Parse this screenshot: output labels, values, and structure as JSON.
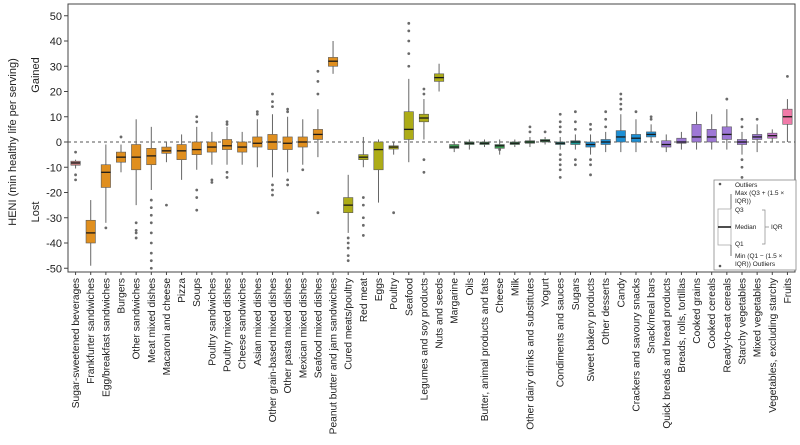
{
  "chart_data": {
    "type": "boxplot",
    "ylabel": "HENI (min healthy life per serving)",
    "y_region_labels": {
      "top": "Gained",
      "bottom": "Lost"
    },
    "ylim": [
      -53,
      55
    ],
    "yticks": [
      -50,
      -40,
      -30,
      -20,
      -10,
      0,
      10,
      20,
      30,
      40,
      50
    ],
    "reference_line": 0,
    "grid": false,
    "categories": [
      {
        "name": "Sugar-sweetened beverages",
        "color": "#c98585",
        "q1": -9.2,
        "median": -8.3,
        "q3": -7.6,
        "wl": -10.5,
        "wh": -7,
        "outliers": [
          -13,
          -15,
          -4
        ]
      },
      {
        "name": "Frankfurter sandwiches",
        "color": "#e08f1f",
        "q1": -40,
        "median": -36,
        "q3": -31,
        "wl": -49,
        "wh": -23,
        "outliers": []
      },
      {
        "name": "Egg/breakfast sandwiches",
        "color": "#e08f1f",
        "q1": -18,
        "median": -12,
        "q3": -9,
        "wl": -32,
        "wh": -1,
        "outliers": [
          -34
        ]
      },
      {
        "name": "Burgers",
        "color": "#e08f1f",
        "q1": -8,
        "median": -6,
        "q3": -4,
        "wl": -12,
        "wh": -1,
        "outliers": [
          2
        ]
      },
      {
        "name": "Other sandwiches",
        "color": "#e08f1f",
        "q1": -11,
        "median": -6,
        "q3": -1,
        "wl": -25,
        "wh": 9,
        "outliers": [
          -32,
          -35,
          -36,
          -38
        ]
      },
      {
        "name": "Meat mixed dishes",
        "color": "#e08f1f",
        "q1": -9,
        "median": -5.5,
        "q3": -2.5,
        "wl": -19,
        "wh": 6,
        "outliers": [
          -23,
          -26,
          -29,
          -32,
          -36,
          -40,
          -44,
          -47,
          -50
        ]
      },
      {
        "name": "Macaroni and cheese",
        "color": "#e08f1f",
        "q1": -4.5,
        "median": -3.5,
        "q3": -2,
        "wl": -8,
        "wh": 0,
        "outliers": [
          -25
        ]
      },
      {
        "name": "Pizza",
        "color": "#e08f1f",
        "q1": -7,
        "median": -3.5,
        "q3": -1,
        "wl": -15,
        "wh": 3,
        "outliers": []
      },
      {
        "name": "Soups",
        "color": "#e08f1f",
        "q1": -5,
        "median": -3,
        "q3": 0,
        "wl": -11,
        "wh": 6,
        "outliers": [
          -19,
          -22,
          -27,
          8,
          10
        ]
      },
      {
        "name": "Poultry sandwiches",
        "color": "#e08f1f",
        "q1": -4,
        "median": -2,
        "q3": 0,
        "wl": -9,
        "wh": 4,
        "outliers": [
          -15,
          -16
        ]
      },
      {
        "name": "Poultry mixed dishes",
        "color": "#e08f1f",
        "q1": -3,
        "median": -1.5,
        "q3": 1,
        "wl": -9,
        "wh": 6,
        "outliers": [
          -12,
          -14,
          7,
          8
        ]
      },
      {
        "name": "Cheese sandwiches",
        "color": "#e08f1f",
        "q1": -4,
        "median": -2,
        "q3": 0,
        "wl": -9,
        "wh": 4,
        "outliers": []
      },
      {
        "name": "Asian mixed dishes",
        "color": "#e08f1f",
        "q1": -2,
        "median": -0.5,
        "q3": 2,
        "wl": -10,
        "wh": 9,
        "outliers": [
          11,
          12
        ]
      },
      {
        "name": "Other grain-based mixed dishes",
        "color": "#e08f1f",
        "q1": -3,
        "median": 0,
        "q3": 3,
        "wl": -14,
        "wh": 11,
        "outliers": [
          -17,
          -19,
          -21,
          14,
          16,
          19
        ]
      },
      {
        "name": "Other pasta mixed dishes",
        "color": "#e08f1f",
        "q1": -3,
        "median": -0.5,
        "q3": 2,
        "wl": -12,
        "wh": 10,
        "outliers": [
          -15,
          -17,
          12,
          13
        ]
      },
      {
        "name": "Mexican mixed dishes",
        "color": "#e08f1f",
        "q1": -2,
        "median": 0,
        "q3": 2,
        "wl": -9,
        "wh": 9,
        "outliers": [
          -11
        ]
      },
      {
        "name": "Seafood mixed dishes",
        "color": "#e08f1f",
        "q1": 1,
        "median": 3,
        "q3": 5,
        "wl": -6,
        "wh": 13,
        "outliers": [
          -28,
          19,
          24,
          28
        ]
      },
      {
        "name": "Peanut butter and jam sandwiches",
        "color": "#e08f1f",
        "q1": 30,
        "median": 32,
        "q3": 33.5,
        "wl": 27,
        "wh": 40,
        "outliers": []
      },
      {
        "name": "Cured meats/poultry",
        "color": "#adac17",
        "q1": -28,
        "median": -25,
        "q3": -22,
        "wl": -36,
        "wh": -13,
        "outliers": [
          -38,
          -40,
          -42,
          -45,
          -47
        ]
      },
      {
        "name": "Red meat",
        "color": "#adac17",
        "q1": -7,
        "median": -6,
        "q3": -5,
        "wl": -10,
        "wh": 2,
        "outliers": [
          -22,
          -25,
          -30,
          -33,
          -37
        ]
      },
      {
        "name": "Eggs",
        "color": "#adac17",
        "q1": -11,
        "median": -3,
        "q3": 0,
        "wl": -24,
        "wh": 1,
        "outliers": []
      },
      {
        "name": "Poultry",
        "color": "#adac17",
        "q1": -2.8,
        "median": -2,
        "q3": -1.5,
        "wl": -5,
        "wh": 0,
        "outliers": [
          -28
        ]
      },
      {
        "name": "Seafood",
        "color": "#adac17",
        "q1": 1,
        "median": 5,
        "q3": 12,
        "wl": -8,
        "wh": 25,
        "outliers": [
          30,
          35,
          40,
          44,
          47
        ]
      },
      {
        "name": "Legumes and soy products",
        "color": "#adac17",
        "q1": 8,
        "median": 9.5,
        "q3": 11,
        "wl": 1,
        "wh": 17,
        "outliers": [
          19,
          21,
          -7,
          -12
        ]
      },
      {
        "name": "Nuts and seeds",
        "color": "#adac17",
        "q1": 24,
        "median": 25.5,
        "q3": 27,
        "wl": 20,
        "wh": 31,
        "outliers": []
      },
      {
        "name": "Margarine",
        "color": "#3e9e55",
        "q1": -2.5,
        "median": -2,
        "q3": -1,
        "wl": -4,
        "wh": 0,
        "outliers": []
      },
      {
        "name": "Oils",
        "color": "#3e9e55",
        "q1": -1,
        "median": -0.5,
        "q3": 0,
        "wl": -3,
        "wh": 1,
        "outliers": []
      },
      {
        "name": "Butter, animal products and fats",
        "color": "#3e9e55",
        "q1": -1,
        "median": -0.5,
        "q3": 0,
        "wl": -2,
        "wh": 1,
        "outliers": []
      },
      {
        "name": "Cheese",
        "color": "#3e9e55",
        "q1": -2.5,
        "median": -1.5,
        "q3": -1,
        "wl": -5,
        "wh": 1,
        "outliers": [
          -3
        ]
      },
      {
        "name": "Milk",
        "color": "#3e9e55",
        "q1": -1,
        "median": -0.5,
        "q3": 0,
        "wl": -2,
        "wh": 1,
        "outliers": []
      },
      {
        "name": "Other dairy drinks and substitutes",
        "color": "#3e9e55",
        "q1": -0.5,
        "median": 0,
        "q3": 0.5,
        "wl": -2,
        "wh": 2,
        "outliers": [
          4,
          6
        ]
      },
      {
        "name": "Yogurt",
        "color": "#3e9e55",
        "q1": 0,
        "median": 0.5,
        "q3": 1,
        "wl": -1,
        "wh": 2,
        "outliers": [
          4
        ]
      },
      {
        "name": "Condiments and sauces",
        "color": "#1d9e9a",
        "q1": -1,
        "median": -0.5,
        "q3": 0,
        "wl": -3,
        "wh": 2,
        "outliers": [
          -5,
          -7,
          -9,
          -11,
          -14,
          4,
          6,
          8,
          11
        ]
      },
      {
        "name": "Sugars",
        "color": "#1d9e9a",
        "q1": -1,
        "median": 0,
        "q3": 0.5,
        "wl": -3,
        "wh": 3,
        "outliers": [
          -7,
          -9,
          5,
          8,
          12
        ]
      },
      {
        "name": "Sweet bakery products",
        "color": "#1d8fd4",
        "q1": -2,
        "median": -1,
        "q3": 0,
        "wl": -5,
        "wh": 3,
        "outliers": [
          -7,
          -9,
          -13,
          5,
          7
        ]
      },
      {
        "name": "Other desserts",
        "color": "#1d8fd4",
        "q1": -1,
        "median": 0,
        "q3": 1,
        "wl": -4,
        "wh": 4,
        "outliers": [
          6,
          9,
          12
        ]
      },
      {
        "name": "Candy",
        "color": "#1d8fd4",
        "q1": 0,
        "median": 2,
        "q3": 4.5,
        "wl": -4,
        "wh": 11,
        "outliers": [
          13,
          15,
          17,
          19
        ]
      },
      {
        "name": "Crackers and savoury snacks",
        "color": "#1d8fd4",
        "q1": 0,
        "median": 1.5,
        "q3": 3,
        "wl": -4,
        "wh": 9,
        "outliers": [
          12
        ]
      },
      {
        "name": "Snack/meal bars",
        "color": "#1d8fd4",
        "q1": 2,
        "median": 3,
        "q3": 4,
        "wl": 0,
        "wh": 7,
        "outliers": [
          9,
          10
        ]
      },
      {
        "name": "Quick breads and bread products",
        "color": "#9e78d6",
        "q1": -2,
        "median": -1,
        "q3": 0.5,
        "wl": -4,
        "wh": 3,
        "outliers": []
      },
      {
        "name": "Breads, rolls, tortillas",
        "color": "#9e78d6",
        "q1": -0.5,
        "median": 0,
        "q3": 1.5,
        "wl": -3,
        "wh": 4,
        "outliers": []
      },
      {
        "name": "Cooked grains",
        "color": "#9e78d6",
        "q1": 0,
        "median": 2,
        "q3": 7,
        "wl": -3,
        "wh": 12,
        "outliers": []
      },
      {
        "name": "Cooked cereals",
        "color": "#9e78d6",
        "q1": 0,
        "median": 2,
        "q3": 5,
        "wl": -3,
        "wh": 11,
        "outliers": []
      },
      {
        "name": "Ready-to-eat cereals",
        "color": "#9e78d6",
        "q1": 1,
        "median": 3,
        "q3": 6,
        "wl": -3,
        "wh": 13,
        "outliers": [
          17
        ]
      },
      {
        "name": "Starchy vegetables",
        "color": "#9e78d6",
        "q1": -1,
        "median": 0,
        "q3": 1,
        "wl": -5,
        "wh": 4,
        "outliers": [
          -7,
          -10,
          -14,
          6,
          9
        ]
      },
      {
        "name": "Mixed vegetables",
        "color": "#9e78d6",
        "q1": 1,
        "median": 2,
        "q3": 3,
        "wl": -4,
        "wh": 7,
        "outliers": [
          9
        ]
      },
      {
        "name": "Vegetables, excluding starchy",
        "color": "#c676cf",
        "q1": 1.5,
        "median": 2.5,
        "q3": 3.5,
        "wl": 0,
        "wh": 5,
        "outliers": []
      },
      {
        "name": "Fruits",
        "color": "#f07aa8",
        "q1": 7,
        "median": 10,
        "q3": 13,
        "wl": 0,
        "wh": 17,
        "outliers": [
          26
        ]
      }
    ],
    "legend": {
      "placement": "right",
      "labels": {
        "outliers_top": "Outliers",
        "max_line1": "Max (Q3 + (1.5 ×",
        "max_line2": "IQR))",
        "q3": "Q3",
        "median": "Median",
        "iqr": "IQR",
        "q1": "Q1",
        "min_line1": "Min (Q1 − (1.5 ×",
        "min_line2": "IQR)) Outliers"
      }
    }
  }
}
